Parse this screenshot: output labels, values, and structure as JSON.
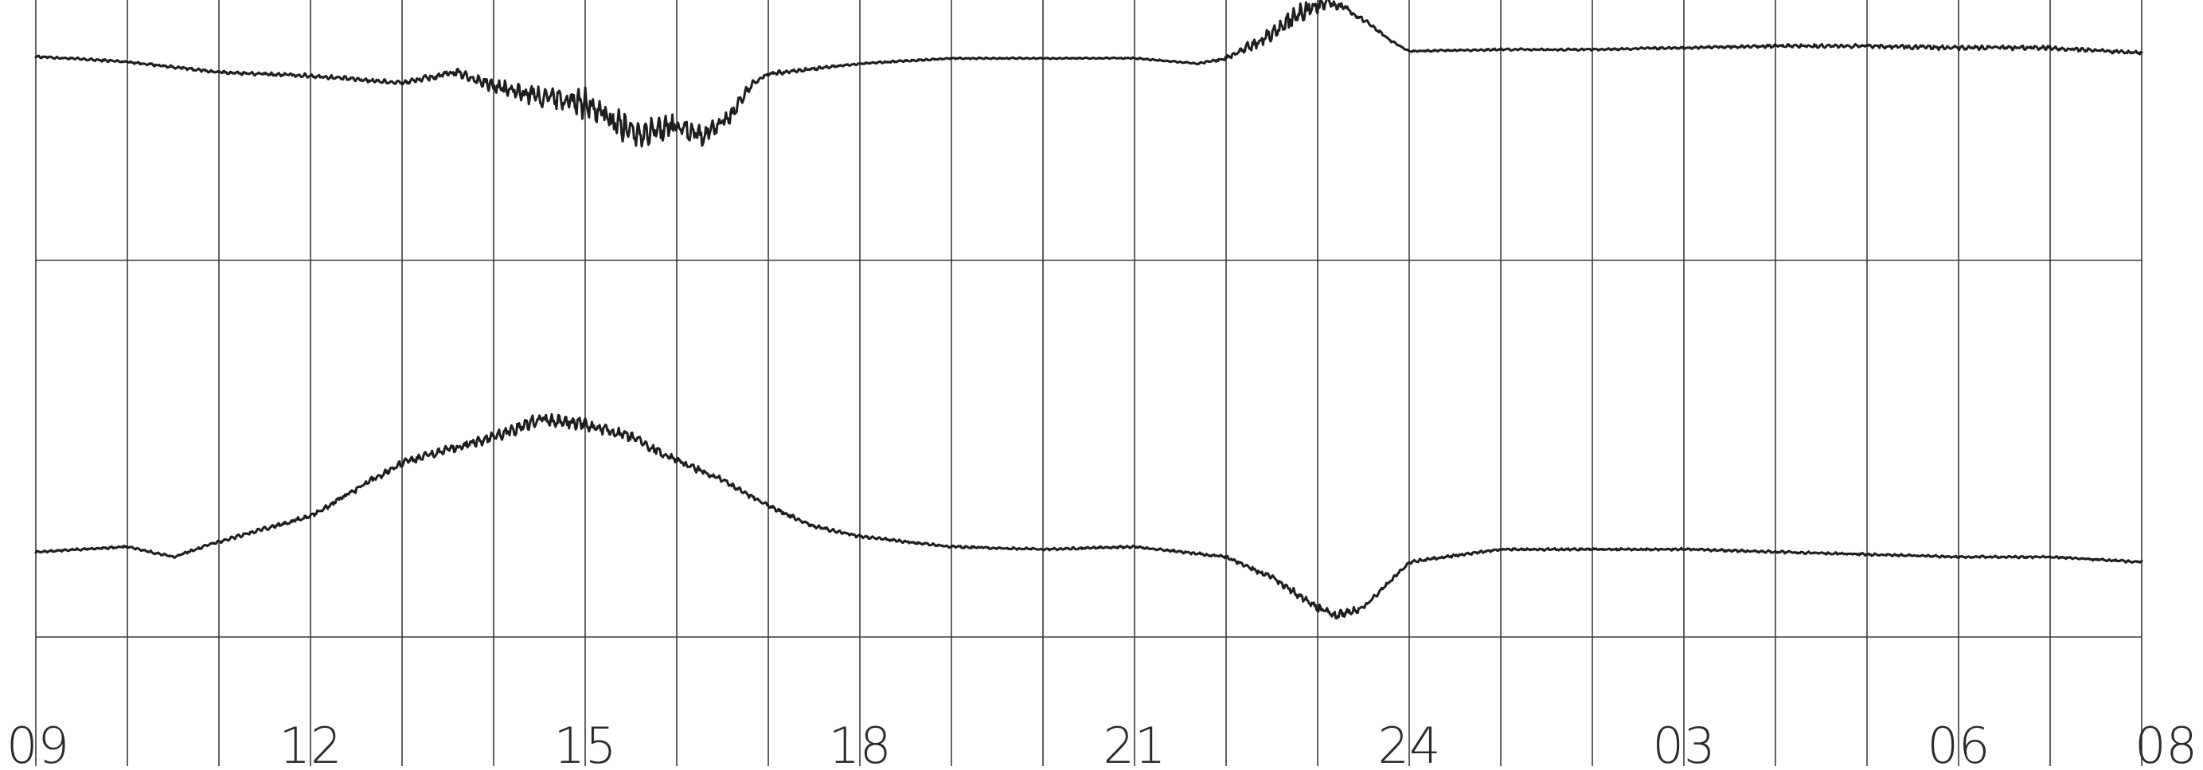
{
  "chart_data": {
    "type": "line",
    "title": "",
    "xlabel": "",
    "ylabel": "",
    "grid": true,
    "x_unit": "hour",
    "xlim": [
      9,
      32
    ],
    "tick_labels": [
      {
        "hour": 9,
        "text": "09"
      },
      {
        "hour": 12,
        "text": "12"
      },
      {
        "hour": 15,
        "text": "15"
      },
      {
        "hour": 18,
        "text": "18"
      },
      {
        "hour": 21,
        "text": "21"
      },
      {
        "hour": 24,
        "text": "24"
      },
      {
        "hour": 27,
        "text": "03"
      },
      {
        "hour": 30,
        "text": "06"
      },
      {
        "hour": 32,
        "text": "08"
      }
    ],
    "series": [
      {
        "panel": "upper",
        "ylim": [
          -1,
          1
        ],
        "x": [
          9,
          10,
          11,
          12,
          13,
          13.6,
          14,
          14.5,
          15,
          15.3,
          15.6,
          16,
          16.3,
          16.6,
          16.8,
          17,
          17.5,
          18,
          19,
          20,
          21,
          21.7,
          22,
          22.3,
          22.6,
          22.9,
          23.1,
          23.3,
          23.6,
          23.8,
          24,
          25,
          26,
          27,
          28,
          29,
          30,
          31,
          32
        ],
        "y": [
          0.45,
          0.42,
          0.36,
          0.34,
          0.3,
          0.36,
          0.28,
          0.22,
          0.18,
          0.08,
          0.02,
          0.05,
          0.0,
          0.12,
          0.28,
          0.35,
          0.38,
          0.41,
          0.44,
          0.44,
          0.44,
          0.41,
          0.44,
          0.52,
          0.62,
          0.72,
          0.76,
          0.73,
          0.62,
          0.54,
          0.48,
          0.49,
          0.49,
          0.5,
          0.51,
          0.51,
          0.5,
          0.5,
          0.47
        ],
        "noise": [
          0.006,
          0.006,
          0.008,
          0.01,
          0.012,
          0.02,
          0.035,
          0.055,
          0.075,
          0.08,
          0.07,
          0.06,
          0.05,
          0.04,
          0.02,
          0.012,
          0.008,
          0.005,
          0.004,
          0.004,
          0.004,
          0.004,
          0.01,
          0.03,
          0.045,
          0.05,
          0.035,
          0.02,
          0.01,
          0.006,
          0.004,
          0.005,
          0.005,
          0.006,
          0.008,
          0.01,
          0.012,
          0.01,
          0.008
        ]
      },
      {
        "panel": "lower",
        "ylim": [
          -1,
          1
        ],
        "x": [
          9,
          10,
          10.5,
          11,
          12,
          13,
          14,
          14.5,
          15,
          15.5,
          16,
          16.5,
          17,
          17.5,
          18,
          19,
          20,
          21,
          22,
          22.5,
          23,
          23.2,
          23.5,
          24,
          25,
          26,
          27,
          28,
          29,
          30,
          31,
          32
        ],
        "y": [
          0.1,
          0.12,
          0.08,
          0.14,
          0.24,
          0.45,
          0.55,
          0.62,
          0.6,
          0.55,
          0.46,
          0.38,
          0.28,
          0.2,
          0.16,
          0.12,
          0.11,
          0.12,
          0.08,
          0.0,
          -0.12,
          -0.15,
          -0.12,
          0.06,
          0.11,
          0.11,
          0.11,
          0.1,
          0.09,
          0.08,
          0.08,
          0.06
        ],
        "noise": [
          0.004,
          0.004,
          0.004,
          0.005,
          0.008,
          0.012,
          0.018,
          0.022,
          0.02,
          0.018,
          0.014,
          0.01,
          0.008,
          0.006,
          0.005,
          0.004,
          0.004,
          0.004,
          0.005,
          0.01,
          0.015,
          0.015,
          0.01,
          0.006,
          0.004,
          0.004,
          0.004,
          0.004,
          0.004,
          0.004,
          0.004,
          0.004
        ]
      }
    ]
  }
}
